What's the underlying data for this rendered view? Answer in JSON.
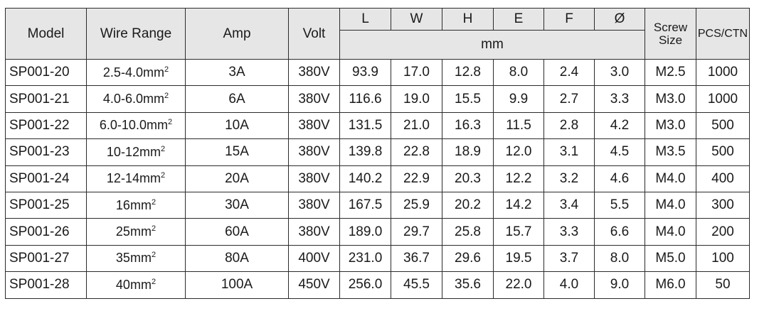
{
  "table": {
    "headers": {
      "model": "Model",
      "wire_range": "Wire Range",
      "amp": "Amp",
      "volt": "Volt",
      "dims": [
        "L",
        "W",
        "H",
        "E",
        "F",
        "Ø"
      ],
      "unit": "mm",
      "screw_size": "Screw Size",
      "pcs_ctn": "PCS/CTN"
    },
    "rows": [
      {
        "model": "SP001-20",
        "wire": "2.5-4.0mm",
        "sup": "2",
        "amp": "3A",
        "volt": "380V",
        "L": "93.9",
        "W": "17.0",
        "H": "12.8",
        "E": "8.0",
        "F": "2.4",
        "D": "3.0",
        "screw": "M2.5",
        "pcs": "1000"
      },
      {
        "model": "SP001-21",
        "wire": "4.0-6.0mm",
        "sup": "2",
        "amp": "6A",
        "volt": "380V",
        "L": "116.6",
        "W": "19.0",
        "H": "15.5",
        "E": "9.9",
        "F": "2.7",
        "D": "3.3",
        "screw": "M3.0",
        "pcs": "1000"
      },
      {
        "model": "SP001-22",
        "wire": "6.0-10.0mm",
        "sup": "2",
        "amp": "10A",
        "volt": "380V",
        "L": "131.5",
        "W": "21.0",
        "H": "16.3",
        "E": "11.5",
        "F": "2.8",
        "D": "4.2",
        "screw": "M3.0",
        "pcs": "500"
      },
      {
        "model": "SP001-23",
        "wire": "10-12mm",
        "sup": "2",
        "amp": "15A",
        "volt": "380V",
        "L": "139.8",
        "W": "22.8",
        "H": "18.9",
        "E": "12.0",
        "F": "3.1",
        "D": "4.5",
        "screw": "M3.5",
        "pcs": "500"
      },
      {
        "model": "SP001-24",
        "wire": "12-14mm",
        "sup": "2",
        "amp": "20A",
        "volt": "380V",
        "L": "140.2",
        "W": "22.9",
        "H": "20.3",
        "E": "12.2",
        "F": "3.2",
        "D": "4.6",
        "screw": "M4.0",
        "pcs": "400"
      },
      {
        "model": "SP001-25",
        "wire": "16mm",
        "sup": "2",
        "amp": "30A",
        "volt": "380V",
        "L": "167.5",
        "W": "25.9",
        "H": "20.2",
        "E": "14.2",
        "F": "3.4",
        "D": "5.5",
        "screw": "M4.0",
        "pcs": "300"
      },
      {
        "model": "SP001-26",
        "wire": "25mm",
        "sup": "2",
        "amp": "60A",
        "volt": "380V",
        "L": "189.0",
        "W": "29.7",
        "H": "25.8",
        "E": "15.7",
        "F": "3.3",
        "D": "6.6",
        "screw": "M4.0",
        "pcs": "200"
      },
      {
        "model": "SP001-27",
        "wire": "35mm",
        "sup": "2",
        "amp": "80A",
        "volt": "400V",
        "L": "231.0",
        "W": "36.7",
        "H": "29.6",
        "E": "19.5",
        "F": "3.7",
        "D": "8.0",
        "screw": "M5.0",
        "pcs": "100"
      },
      {
        "model": "SP001-28",
        "wire": "40mm",
        "sup": "2",
        "amp": "100A",
        "volt": "450V",
        "L": "256.0",
        "W": "45.5",
        "H": "35.6",
        "E": "22.0",
        "F": "4.0",
        "D": "9.0",
        "screw": "M6.0",
        "pcs": "50"
      }
    ]
  }
}
